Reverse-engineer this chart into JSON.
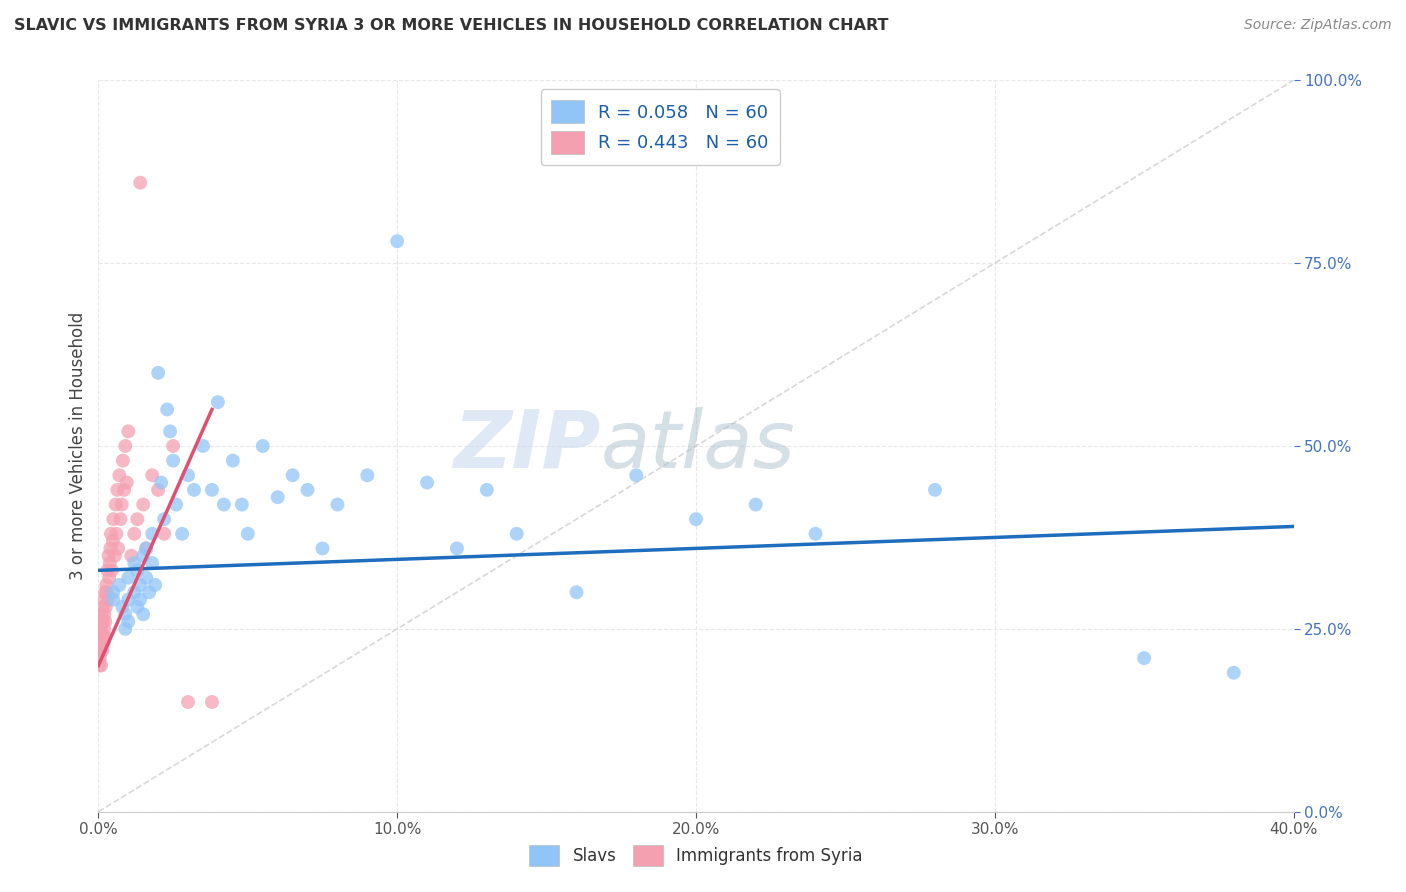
{
  "title": "SLAVIC VS IMMIGRANTS FROM SYRIA 3 OR MORE VEHICLES IN HOUSEHOLD CORRELATION CHART",
  "source": "Source: ZipAtlas.com",
  "xmin": 0.0,
  "xmax": 0.4,
  "ymin": 0.0,
  "ymax": 1.0,
  "slavs_R": 0.058,
  "slavs_N": 60,
  "syria_R": 0.443,
  "syria_N": 60,
  "slavs_color": "#92c5f7",
  "syria_color": "#f4a0b0",
  "slavs_line_color": "#1f6dbf",
  "syria_line_color": "#e05070",
  "diagonal_color": "#c8c8c8",
  "background_color": "#ffffff",
  "grid_color": "#e8e8e8",
  "legend_label_slavs": "Slavs",
  "legend_label_syria": "Immigrants from Syria",
  "ylabel": "3 or more Vehicles in Household",
  "title_color": "#333333",
  "source_color": "#888888",
  "tick_label_color_y": "#4472c4",
  "tick_label_color_x": "#555555",
  "slavs_x": [
    0.005,
    0.005,
    0.007,
    0.008,
    0.009,
    0.009,
    0.01,
    0.01,
    0.01,
    0.012,
    0.012,
    0.013,
    0.013,
    0.014,
    0.014,
    0.015,
    0.015,
    0.016,
    0.016,
    0.017,
    0.018,
    0.018,
    0.019,
    0.02,
    0.021,
    0.022,
    0.023,
    0.024,
    0.025,
    0.026,
    0.028,
    0.03,
    0.032,
    0.035,
    0.038,
    0.04,
    0.042,
    0.045,
    0.048,
    0.05,
    0.055,
    0.06,
    0.065,
    0.07,
    0.075,
    0.08,
    0.09,
    0.1,
    0.11,
    0.12,
    0.13,
    0.14,
    0.16,
    0.18,
    0.2,
    0.22,
    0.24,
    0.28,
    0.35,
    0.38
  ],
  "slavs_y": [
    0.3,
    0.29,
    0.31,
    0.28,
    0.27,
    0.25,
    0.32,
    0.29,
    0.26,
    0.34,
    0.3,
    0.28,
    0.33,
    0.31,
    0.29,
    0.35,
    0.27,
    0.36,
    0.32,
    0.3,
    0.38,
    0.34,
    0.31,
    0.6,
    0.45,
    0.4,
    0.55,
    0.52,
    0.48,
    0.42,
    0.38,
    0.46,
    0.44,
    0.5,
    0.44,
    0.56,
    0.42,
    0.48,
    0.42,
    0.38,
    0.5,
    0.43,
    0.46,
    0.44,
    0.36,
    0.42,
    0.46,
    0.78,
    0.45,
    0.36,
    0.44,
    0.38,
    0.3,
    0.46,
    0.4,
    0.42,
    0.38,
    0.44,
    0.21,
    0.19
  ],
  "syria_x": [
    0.0002,
    0.0003,
    0.0004,
    0.0005,
    0.0006,
    0.0007,
    0.0008,
    0.0009,
    0.001,
    0.0011,
    0.0012,
    0.0013,
    0.0014,
    0.0015,
    0.0016,
    0.0017,
    0.0018,
    0.0019,
    0.002,
    0.0021,
    0.0022,
    0.0023,
    0.0025,
    0.0026,
    0.0028,
    0.003,
    0.0032,
    0.0034,
    0.0036,
    0.0038,
    0.004,
    0.0042,
    0.0045,
    0.0048,
    0.005,
    0.0055,
    0.0058,
    0.006,
    0.0063,
    0.0066,
    0.007,
    0.0074,
    0.0078,
    0.0082,
    0.0086,
    0.009,
    0.0095,
    0.01,
    0.011,
    0.012,
    0.013,
    0.014,
    0.015,
    0.016,
    0.018,
    0.02,
    0.022,
    0.025,
    0.03,
    0.038
  ],
  "syria_y": [
    0.22,
    0.2,
    0.23,
    0.21,
    0.24,
    0.22,
    0.25,
    0.2,
    0.26,
    0.23,
    0.27,
    0.22,
    0.28,
    0.24,
    0.26,
    0.23,
    0.29,
    0.25,
    0.27,
    0.24,
    0.3,
    0.26,
    0.28,
    0.31,
    0.3,
    0.33,
    0.29,
    0.35,
    0.32,
    0.34,
    0.36,
    0.38,
    0.33,
    0.37,
    0.4,
    0.35,
    0.42,
    0.38,
    0.44,
    0.36,
    0.46,
    0.4,
    0.42,
    0.48,
    0.44,
    0.5,
    0.45,
    0.52,
    0.35,
    0.38,
    0.4,
    0.86,
    0.42,
    0.36,
    0.46,
    0.44,
    0.38,
    0.5,
    0.15,
    0.15
  ],
  "slavs_line_x": [
    0.0,
    0.4
  ],
  "slavs_line_y": [
    0.33,
    0.39
  ],
  "syria_line_x": [
    0.0,
    0.038
  ],
  "syria_line_y": [
    0.2,
    0.55
  ]
}
